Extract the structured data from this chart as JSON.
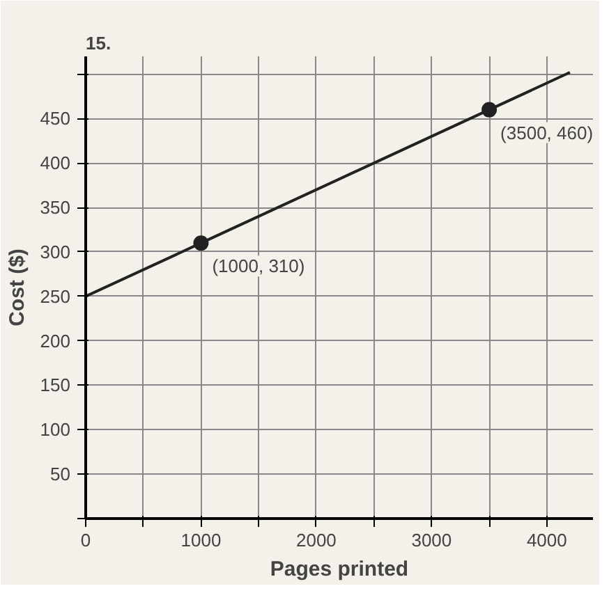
{
  "chart_data": {
    "type": "line",
    "xlabel": "Pages printed",
    "ylabel": "Cost ($)",
    "annotations": [
      "15.",
      {
        "text": "(1000, 310)",
        "x": 1000,
        "y": 310
      },
      {
        "text": "(3500, 460)",
        "x": 3500,
        "y": 460
      }
    ],
    "series": [
      {
        "color": "#222222",
        "x": [
          0,
          1000,
          3500,
          4200
        ],
        "values": [
          250,
          310,
          460,
          502
        ],
        "marker": "none"
      },
      {
        "type": "scatter",
        "color": "#222222",
        "x": [
          1000,
          3500
        ],
        "values": [
          310,
          460
        ],
        "marker": "circle"
      }
    ],
    "xlim": [
      0,
      4400
    ],
    "ylim": [
      0,
      520
    ],
    "xticks": [
      0,
      {
        "value": 500,
        "label": null
      },
      1000,
      {
        "value": 1500,
        "label": null
      },
      2000,
      {
        "value": 2500,
        "label": null
      },
      3000,
      {
        "value": 3500,
        "label": null
      },
      4000
    ],
    "yticks": [
      {
        "value": 0,
        "label": null
      },
      50,
      100,
      150,
      200,
      250,
      300,
      350,
      400,
      450,
      {
        "value": 500,
        "label": null
      }
    ],
    "grid": true
  }
}
